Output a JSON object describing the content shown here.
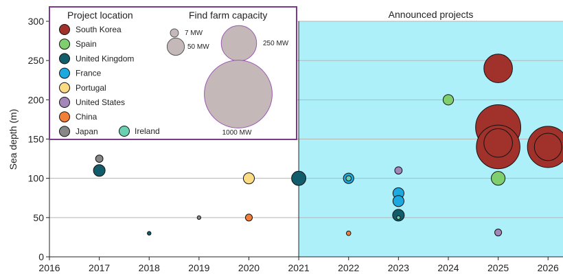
{
  "chart_data": {
    "type": "scatter",
    "ylabel": "Sea depth (m)",
    "xlim": [
      2016,
      2026.3
    ],
    "ylim": [
      0,
      300
    ],
    "x_ticks": [
      "2016",
      "2017",
      "2018",
      "2019",
      "2020",
      "2021",
      "2022",
      "2023",
      "2024",
      "2025",
      "2026"
    ],
    "y_ticks": [
      "0",
      "50",
      "100",
      "150",
      "200",
      "250",
      "300"
    ],
    "grid_y": true,
    "announced_region": {
      "label": "Announced projects",
      "x_start": 2021,
      "color": "#adf0fa"
    },
    "legend": {
      "location_title": "Project location",
      "capacity_title": "Find farm capacity",
      "placement": "top-left",
      "countries": [
        {
          "name": "South Korea",
          "color": "#a1322b"
        },
        {
          "name": "Spain",
          "color": "#7fcf6e"
        },
        {
          "name": "United Kingdom",
          "color": "#125d6b"
        },
        {
          "name": "France",
          "color": "#1ba9df"
        },
        {
          "name": "Portugal",
          "color": "#fbdb84"
        },
        {
          "name": "United States",
          "color": "#a487b9"
        },
        {
          "name": "China",
          "color": "#f27f37"
        },
        {
          "name": "Japan",
          "color": "#878787"
        },
        {
          "name": "Ireland",
          "color": "#6bcfb2"
        }
      ],
      "sizes": [
        {
          "label": "7 MW",
          "mw": 7
        },
        {
          "label": "50 MW",
          "mw": 50
        },
        {
          "label": "250 MW",
          "mw": 250
        },
        {
          "label": "1000 MW",
          "mw": 1000
        }
      ]
    },
    "points": [
      {
        "country": "Japan",
        "x": 2017,
        "y": 125,
        "mw": 8
      },
      {
        "country": "United Kingdom",
        "x": 2017,
        "y": 110,
        "mw": 20
      },
      {
        "country": "United Kingdom",
        "x": 2018,
        "y": 30,
        "mw": 2
      },
      {
        "country": "Japan",
        "x": 2019,
        "y": 50,
        "mw": 2
      },
      {
        "country": "Portugal",
        "x": 2020,
        "y": 100,
        "mw": 18
      },
      {
        "country": "China",
        "x": 2020,
        "y": 50,
        "mw": 7
      },
      {
        "country": "United Kingdom",
        "x": 2021,
        "y": 100,
        "mw": 30
      },
      {
        "country": "France",
        "x": 2022,
        "y": 100,
        "mw": 16
      },
      {
        "country": "Ireland",
        "x": 2022,
        "y": 100,
        "mw": 4
      },
      {
        "country": "China",
        "x": 2022,
        "y": 30,
        "mw": 3
      },
      {
        "country": "United States",
        "x": 2023,
        "y": 110,
        "mw": 8
      },
      {
        "country": "France",
        "x": 2023,
        "y": 81,
        "mw": 18
      },
      {
        "country": "France",
        "x": 2023,
        "y": 71,
        "mw": 18
      },
      {
        "country": "United Kingdom",
        "x": 2023,
        "y": 53,
        "mw": 20
      },
      {
        "country": "Ireland",
        "x": 2023,
        "y": 50,
        "mw": 2
      },
      {
        "country": "Spain",
        "x": 2024,
        "y": 200,
        "mw": 16
      },
      {
        "country": "South Korea",
        "x": 2025,
        "y": 240,
        "mw": 120
      },
      {
        "country": "South Korea",
        "x": 2025,
        "y": 165,
        "mw": 300
      },
      {
        "country": "South Korea",
        "x": 2025,
        "y": 145,
        "mw": 120
      },
      {
        "country": "South Korea",
        "x": 2025,
        "y": 140,
        "mw": 280
      },
      {
        "country": "Spain",
        "x": 2025,
        "y": 100,
        "mw": 28
      },
      {
        "country": "United States",
        "x": 2025,
        "y": 31,
        "mw": 7
      },
      {
        "country": "South Korea",
        "x": 2026,
        "y": 140,
        "mw": 250
      },
      {
        "country": "South Korea",
        "x": 2026,
        "y": 140,
        "mw": 110
      }
    ]
  }
}
